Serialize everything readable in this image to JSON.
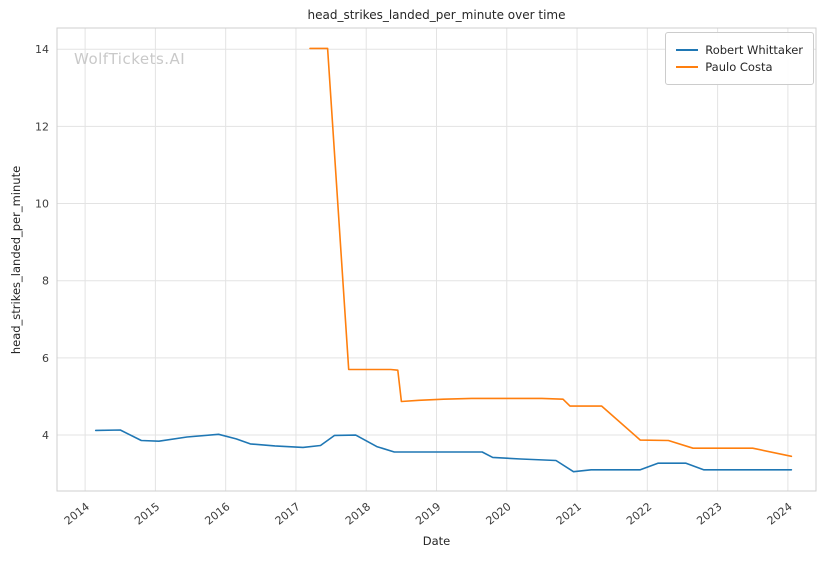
{
  "watermark": "WolfTickets.AI",
  "chart_data": {
    "type": "line",
    "title": "head_strikes_landed_per_minute over time",
    "xlabel": "Date",
    "ylabel": "head_strikes_landed_per_minute",
    "grid": true,
    "legend_position": "upper right",
    "xlim": [
      2013.6,
      2024.4
    ],
    "ylim": [
      2.55,
      14.55
    ],
    "x_ticks": [
      2014,
      2015,
      2016,
      2017,
      2018,
      2019,
      2020,
      2021,
      2022,
      2023,
      2024
    ],
    "x_tick_labels": [
      "2014",
      "2015",
      "2016",
      "2017",
      "2018",
      "2019",
      "2020",
      "2021",
      "2022",
      "2023",
      "2024"
    ],
    "y_ticks": [
      4,
      6,
      8,
      10,
      12,
      14
    ],
    "y_tick_labels": [
      "4",
      "6",
      "8",
      "10",
      "12",
      "14"
    ],
    "series": [
      {
        "name": "Robert Whittaker",
        "color": "#1f77b4",
        "points": [
          [
            2014.15,
            4.12
          ],
          [
            2014.5,
            4.13
          ],
          [
            2014.8,
            3.86
          ],
          [
            2015.05,
            3.84
          ],
          [
            2015.45,
            3.95
          ],
          [
            2015.9,
            4.02
          ],
          [
            2016.15,
            3.9
          ],
          [
            2016.35,
            3.77
          ],
          [
            2016.7,
            3.72
          ],
          [
            2017.1,
            3.68
          ],
          [
            2017.35,
            3.73
          ],
          [
            2017.55,
            3.99
          ],
          [
            2017.85,
            4.0
          ],
          [
            2018.15,
            3.7
          ],
          [
            2018.4,
            3.56
          ],
          [
            2018.8,
            3.56
          ],
          [
            2019.3,
            3.56
          ],
          [
            2019.65,
            3.56
          ],
          [
            2019.8,
            3.42
          ],
          [
            2020.2,
            3.38
          ],
          [
            2020.7,
            3.34
          ],
          [
            2020.95,
            3.05
          ],
          [
            2021.2,
            3.1
          ],
          [
            2021.6,
            3.1
          ],
          [
            2021.9,
            3.1
          ],
          [
            2022.15,
            3.27
          ],
          [
            2022.55,
            3.27
          ],
          [
            2022.8,
            3.1
          ],
          [
            2023.2,
            3.1
          ],
          [
            2023.6,
            3.1
          ],
          [
            2024.05,
            3.1
          ]
        ]
      },
      {
        "name": "Paulo Costa",
        "color": "#ff7f0e",
        "points": [
          [
            2017.2,
            14.02
          ],
          [
            2017.45,
            14.02
          ],
          [
            2017.75,
            5.7
          ],
          [
            2018.35,
            5.7
          ],
          [
            2018.45,
            5.68
          ],
          [
            2018.5,
            4.87
          ],
          [
            2018.75,
            4.9
          ],
          [
            2019.1,
            4.93
          ],
          [
            2019.5,
            4.95
          ],
          [
            2020.0,
            4.95
          ],
          [
            2020.5,
            4.95
          ],
          [
            2020.8,
            4.93
          ],
          [
            2020.9,
            4.75
          ],
          [
            2021.35,
            4.75
          ],
          [
            2021.9,
            3.87
          ],
          [
            2022.3,
            3.86
          ],
          [
            2022.65,
            3.66
          ],
          [
            2023.1,
            3.66
          ],
          [
            2023.5,
            3.66
          ],
          [
            2024.05,
            3.45
          ]
        ]
      }
    ]
  }
}
